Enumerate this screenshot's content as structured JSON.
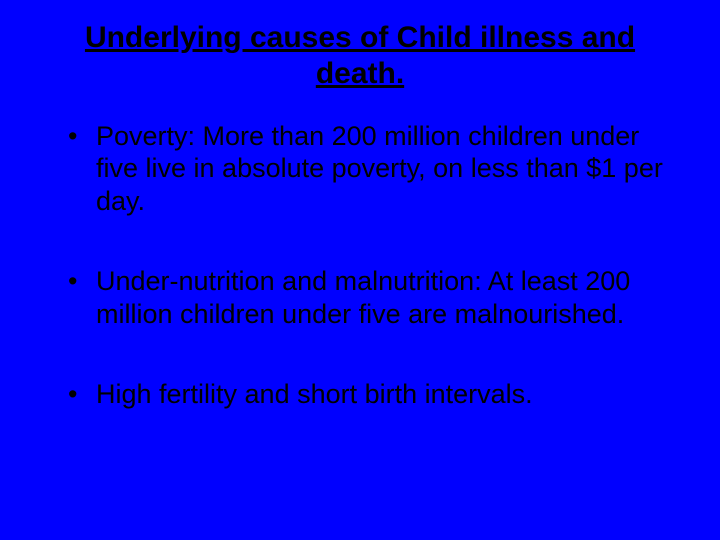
{
  "slide": {
    "background_color": "#0000ff",
    "text_color": "#000000",
    "title": "Underlying causes of Child illness and death.",
    "title_fontsize": 30,
    "title_fontweight": "bold",
    "title_underline": true,
    "body_fontsize": 27,
    "font_family": "Arial",
    "bullets": [
      "Poverty: More than 200 million children under five live in absolute poverty, on less than $1 per day.",
      "Under-nutrition and malnutrition: At least 200 million children under five are malnourished.",
      "High fertility and short birth intervals."
    ]
  }
}
